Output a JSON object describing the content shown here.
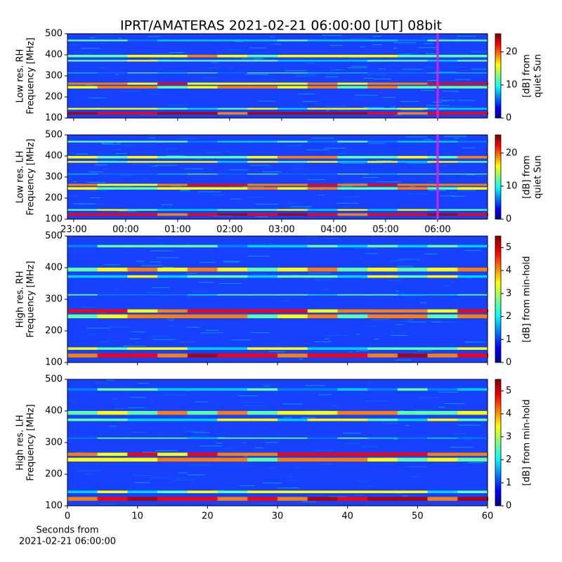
{
  "title": "IPRT/AMATERAS 2021-02-21 06:00:00 [UT]   08bit",
  "chart_data": [
    {
      "type": "spectrogram",
      "ylabel": [
        "Low res. RH",
        "Frequency [MHz]"
      ],
      "ylim": [
        100,
        500
      ],
      "yticks": [
        100,
        200,
        300,
        400,
        500
      ],
      "xlim": [
        -1.12,
        6.96
      ],
      "xticks": [
        -1,
        0,
        1,
        2,
        3,
        4,
        5,
        6
      ],
      "marker": {
        "value": 6,
        "color": "#e020e0"
      },
      "colorbar": {
        "label": [
          "[dB] from",
          "quiet Sun"
        ],
        "lim": [
          0,
          25.5
        ],
        "ticks": [
          0,
          10,
          20
        ]
      }
    },
    {
      "type": "spectrogram",
      "ylabel": [
        "Low res. LH",
        "Frequency [MHz]"
      ],
      "ylim": [
        100,
        500
      ],
      "yticks": [
        100,
        200,
        300,
        400,
        500
      ],
      "xlim": [
        -1.12,
        6.96
      ],
      "xticks": [
        {
          "value": -1,
          "label": "23:00"
        },
        {
          "value": 0,
          "label": "00:00"
        },
        {
          "value": 1,
          "label": "01:00"
        },
        {
          "value": 2,
          "label": "02:00"
        },
        {
          "value": 3,
          "label": "03:00"
        },
        {
          "value": 4,
          "label": "04:00"
        },
        {
          "value": 5,
          "label": "05:00"
        },
        {
          "value": 6,
          "label": "06:00"
        }
      ],
      "marker": {
        "value": 6,
        "color": "#e020e0"
      },
      "colorbar": {
        "label": [
          "[dB] from",
          "quiet Sun"
        ],
        "lim": [
          0,
          25.5
        ],
        "ticks": [
          0,
          10,
          20
        ]
      }
    },
    {
      "type": "spectrogram",
      "ylabel": [
        "High res. RH",
        "Frequency [MHz]"
      ],
      "ylim": [
        100,
        500
      ],
      "yticks": [
        100,
        200,
        300,
        400,
        500
      ],
      "xlim": [
        0,
        60
      ],
      "xticks": [
        0,
        10,
        20,
        30,
        40,
        50,
        60
      ],
      "colorbar": {
        "label": [
          "[dB] from min-hold"
        ],
        "lim": [
          0,
          5.5
        ],
        "ticks": [
          0,
          1,
          2,
          3,
          4,
          5
        ]
      }
    },
    {
      "type": "spectrogram",
      "ylabel": [
        "High res. LH",
        "Frequency [MHz]"
      ],
      "ylim": [
        100,
        500
      ],
      "yticks": [
        100,
        200,
        300,
        400,
        500
      ],
      "xlim": [
        0,
        60
      ],
      "xticks": [
        0,
        10,
        20,
        30,
        40,
        50,
        60
      ],
      "xtick_labels": true,
      "xlabel": [
        "Seconds from",
        "2021-02-21 06:00:00"
      ],
      "colorbar": {
        "label": [
          "[dB] from min-hold"
        ],
        "lim": [
          0,
          5.5
        ],
        "ticks": [
          0,
          1,
          2,
          3,
          4,
          5
        ]
      }
    }
  ]
}
